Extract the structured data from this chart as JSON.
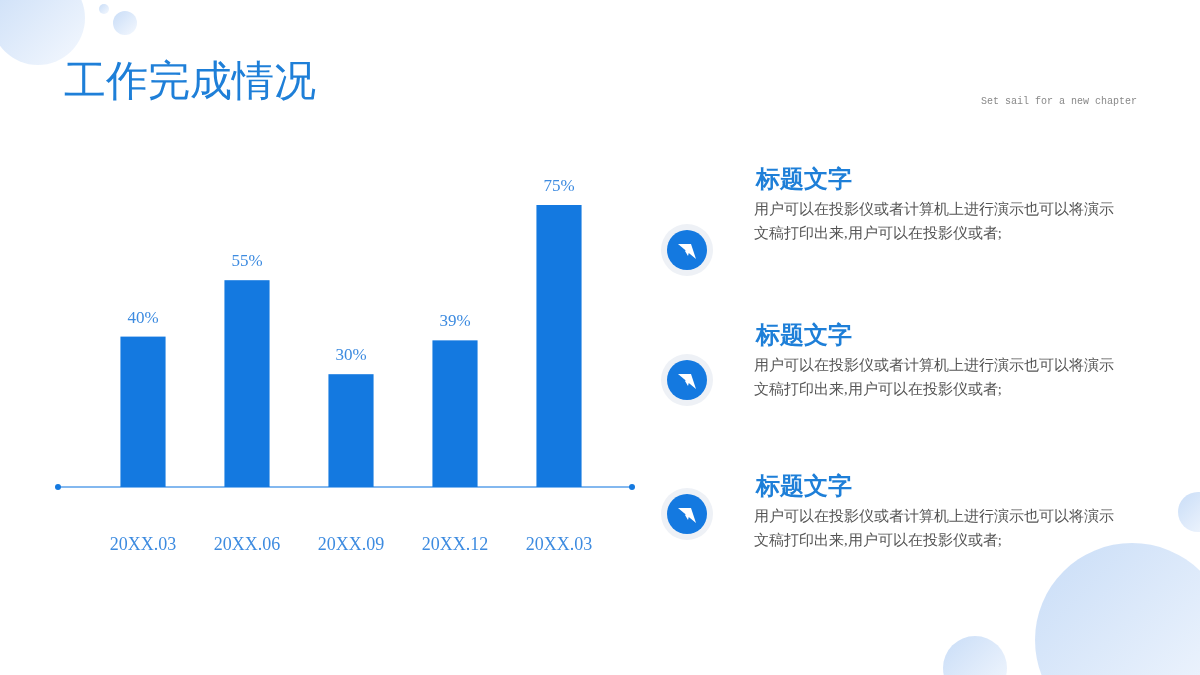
{
  "chart_data": {
    "type": "bar",
    "title": "工作完成情况",
    "categories": [
      "20XX.03",
      "20XX.06",
      "20XX.09",
      "20XX.12",
      "20XX.03"
    ],
    "values": [
      40,
      55,
      30,
      39,
      75
    ],
    "value_labels": [
      "40%",
      "55%",
      "30%",
      "39%",
      "75%"
    ],
    "color": "#1479e0",
    "annotations": [
      "Set sail for a new chapter",
      "标题文字",
      "用户可以在投影仪或者计算机上进行演示也可以将演示文稿打印出来,用户可以在投影仪或者;",
      "标题文字",
      "用户可以在投影仪或者计算机上进行演示也可以将演示文稿打印出来,用户可以在投影仪或者;",
      "标题文字",
      "用户可以在投影仪或者计算机上进行演示也可以将演示文稿打印出来,用户可以在投影仪或者;"
    ]
  }
}
